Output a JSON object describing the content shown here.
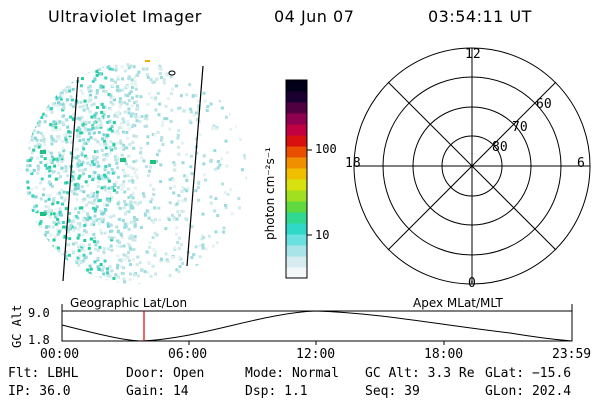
{
  "header": {
    "instrument": "Ultraviolet Imager",
    "date": "04 Jun 07",
    "time": "03:54:11 UT"
  },
  "colorbar": {
    "unit_label": "photon cm⁻²s⁻¹",
    "ticks": [
      "100",
      "10"
    ]
  },
  "polar_plot": {
    "mlt_labels": {
      "top": "12",
      "left": "18",
      "right": "6",
      "bottom": "0"
    },
    "lat_labels": [
      "60",
      "70",
      "80"
    ]
  },
  "timeline": {
    "left_label": "Geographic Lat/Lon",
    "right_label": "Apex MLat/MLT",
    "axis_title": "GC Alt",
    "y_ticks": [
      "9.0",
      "1.8"
    ],
    "x_ticks": [
      "00:00",
      "06:00",
      "12:00",
      "18:00",
      "23:59"
    ],
    "marker_color": "#e00000"
  },
  "info": {
    "filter": "Flt: LBHL",
    "ip": "IP: 36.0",
    "door": "Door: Open",
    "gain": "Gain: 14",
    "mode": "Mode: Normal",
    "dsp": "Dsp:    1.1",
    "gc_alt": "GC Alt: 3.3 Re",
    "seq": "Seq: 39",
    "glat": "GLat: −15.6",
    "glon": "GLon: 202.4"
  }
}
